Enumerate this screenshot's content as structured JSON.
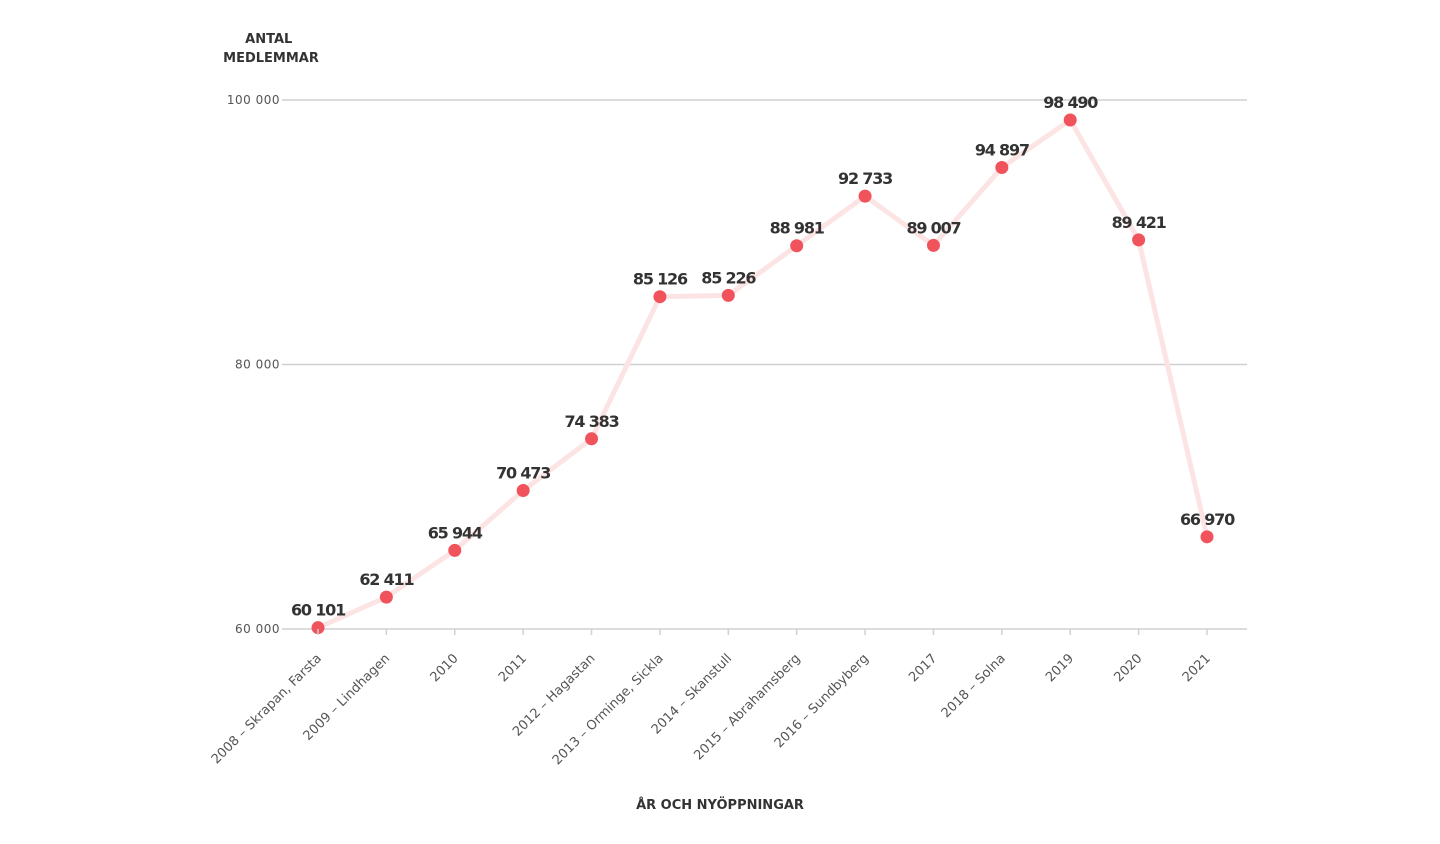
{
  "chart_data": {
    "type": "line",
    "title": "",
    "ylabel": "ANTAL\nMEDLEMMAR",
    "ylabel_lines": [
      "ANTAL",
      "MEDLEMMAR"
    ],
    "xlabel": "ÅR OCH NYÖPPNINGAR",
    "ylim": [
      60000,
      100000
    ],
    "yticks": [
      60000,
      80000,
      100000
    ],
    "ytick_labels": [
      "60 000",
      "80 000",
      "100 000"
    ],
    "grid": true,
    "categories": [
      "2008 – Skrapan, Farsta",
      "2009 – Lindhagen",
      "2010",
      "2011",
      "2012 – Hagastan",
      "2013 – Orminge, Sickla",
      "2014 – Skanstull",
      "2015 – Abrahamsberg",
      "2016 – Sundbyberg",
      "2017",
      "2018 – Solna",
      "2019",
      "2020",
      "2021"
    ],
    "values": [
      60101,
      62411,
      65944,
      70473,
      74383,
      85126,
      85226,
      88981,
      92733,
      89007,
      94897,
      98490,
      89421,
      66970
    ],
    "value_labels": [
      "60 101",
      "62 411",
      "65 944",
      "70 473",
      "74 383",
      "85 126",
      "85 226",
      "88 981",
      "92 733",
      "89 007",
      "94 897",
      "98 490",
      "89 421",
      "66 970"
    ],
    "colors": {
      "point": "#f0535b",
      "line": "#fde4e4",
      "grid": "#d0d0d0",
      "text": "#333333"
    }
  }
}
